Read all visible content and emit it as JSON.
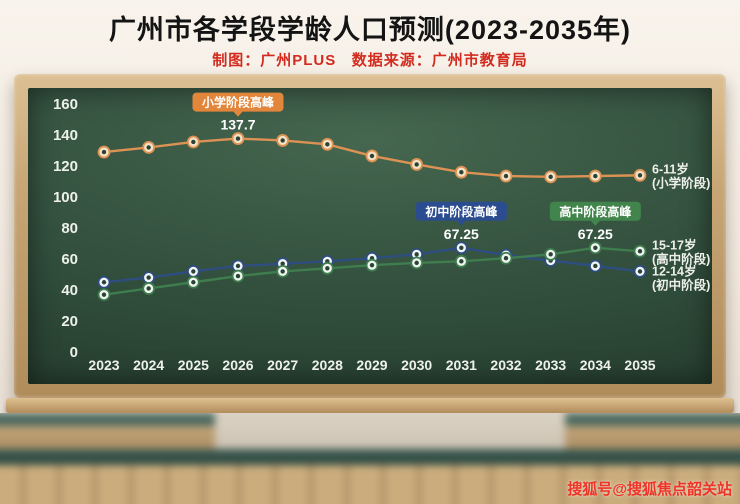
{
  "page": {
    "title": "广州市各学段学龄人口预测(2023-2035年)",
    "subtitle": "制图：广州PLUS   数据来源：广州市教育局",
    "watermark": "搜狐号@搜狐焦点韶关站"
  },
  "chart_data": {
    "type": "line",
    "title": "广州市各学段学龄人口预测(2023-2035年)",
    "source_note": "制图：广州PLUS 数据来源：广州市教育局",
    "x": [
      2023,
      2024,
      2025,
      2026,
      2027,
      2028,
      2029,
      2030,
      2031,
      2032,
      2033,
      2034,
      2035
    ],
    "ylim": [
      0,
      160
    ],
    "yticks": [
      0,
      20,
      40,
      60,
      80,
      100,
      120,
      140,
      160
    ],
    "grid": false,
    "legend_position": "right-inline",
    "marker_center": "#2b4336",
    "series": [
      {
        "name": "6-11岁(小学阶段)",
        "color": "#dc9253",
        "marker_fill": "#f5e2c6",
        "values": [
          129,
          132,
          135.5,
          137.7,
          136.5,
          134,
          126.5,
          121,
          116,
          113.5,
          113,
          113.5,
          114
        ],
        "peak": {
          "year": 2026,
          "value": 137.7,
          "label": "小学阶段高峰",
          "badge_color": "#e2863b"
        }
      },
      {
        "name": "12-14岁(初中阶段)",
        "color": "#2e4d80",
        "marker_fill": "#f2f5f8",
        "values": [
          45,
          48,
          52,
          55.5,
          57,
          58.5,
          60.5,
          63,
          67.25,
          62.5,
          59,
          55.5,
          52
        ],
        "peak": {
          "year": 2031,
          "value": 67.25,
          "label": "初中阶段高峰",
          "badge_color": "#2b4d8f"
        }
      },
      {
        "name": "15-17岁(高中阶段)",
        "color": "#3f7d4e",
        "marker_fill": "#eef5ee",
        "values": [
          37,
          41,
          45,
          49,
          52,
          54,
          56,
          57.5,
          58.5,
          60.5,
          63,
          67.25,
          65
        ],
        "peak": {
          "year": 2034,
          "value": 67.25,
          "label": "高中阶段高峰",
          "badge_color": "#42854c"
        }
      }
    ],
    "right_labels": [
      {
        "series": 0,
        "lines": [
          "6-11岁",
          "(小学阶段)"
        ],
        "dy": 0
      },
      {
        "series": 2,
        "lines": [
          "15-17岁",
          "(高中阶段)"
        ],
        "dy": 0
      },
      {
        "series": 1,
        "lines": [
          "12-14岁",
          "(初中阶段)"
        ],
        "dy": 6
      }
    ]
  }
}
